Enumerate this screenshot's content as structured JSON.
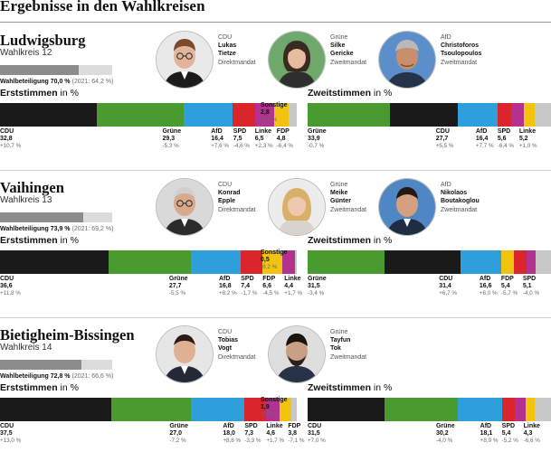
{
  "page_title": "Ergebnisse in den Wahlkreisen",
  "vote_titles": {
    "first": {
      "main": "Erststimmen",
      "unit": " in %"
    },
    "second": {
      "main": "Zweitstimmen",
      "unit": " in %"
    }
  },
  "colors": {
    "CDU": "#1a1a1a",
    "Grüne": "#4a9b2f",
    "AfD": "#2d9fdb",
    "SPD": "#d9252b",
    "Linke": "#b3318f",
    "FDP": "#f2c40f",
    "Sonstige": "#c8c8c8"
  },
  "districts": [
    {
      "name": "Ludwigsburg",
      "subtitle": "Wahlkreis 12",
      "turnout_label": "Wahlbeteiligung 70,0 %",
      "turnout_prev": "(2021: 64,2 %)",
      "turnout_value": 70.0,
      "candidates": [
        {
          "party": "CDU",
          "first": "Lukas",
          "last": "Tietze",
          "mandate": "Direktmandat",
          "photo": "portrait-1"
        },
        {
          "party": "Grüne",
          "first": "Silke",
          "last": "Gericke",
          "mandate": "Zweitmandat",
          "photo": "portrait-2"
        },
        {
          "party": "AfD",
          "first": "Christoforos",
          "last": "Tsoulopoulos",
          "mandate": "Zweitmandat",
          "photo": "portrait-3"
        }
      ],
      "first_votes": [
        {
          "party": "CDU",
          "value": 32.8,
          "value_label": "32,8",
          "change": "+10,7 %"
        },
        {
          "party": "Grüne",
          "value": 29.3,
          "value_label": "29,3",
          "change": "-5,3 %"
        },
        {
          "party": "AfD",
          "value": 16.4,
          "value_label": "16,4",
          "change": "+7,6 %"
        },
        {
          "party": "SPD",
          "value": 7.5,
          "value_label": "7,5",
          "change": "-4,6 %"
        },
        {
          "party": "Linke",
          "value": 6.5,
          "value_label": "6,5",
          "change": "+2,3 %"
        },
        {
          "party": "FDP",
          "value": 4.8,
          "value_label": "4,8",
          "change": "-6,4 %"
        },
        {
          "party": "Sonstige",
          "value": 2.8,
          "value_label": "2,8",
          "change": "-4,3 %"
        }
      ],
      "second_votes": [
        {
          "party": "Grüne",
          "value": 33.9,
          "value_label": "33,9",
          "change": "-0,7 %"
        },
        {
          "party": "CDU",
          "value": 27.7,
          "value_label": "27,7",
          "change": "+5,5 %"
        },
        {
          "party": "AfD",
          "value": 16.4,
          "value_label": "16,4",
          "change": "+7,7 %"
        },
        {
          "party": "SPD",
          "value": 5.6,
          "value_label": "5,6",
          "change": "-6,4 %"
        },
        {
          "party": "Linke",
          "value": 5.2,
          "value_label": "5,2",
          "change": "+1,0 %"
        },
        {
          "party": "FDP",
          "value": 4.5,
          "value_label": "",
          "change": ""
        },
        {
          "party": "Sonstige",
          "value": 6.7,
          "value_label": "",
          "change": ""
        }
      ]
    },
    {
      "name": "Vaihingen",
      "subtitle": "Wahlkreis 13",
      "turnout_label": "Wahlbeteiligung 73,9 %",
      "turnout_prev": "(2021: 69,2 %)",
      "turnout_value": 73.9,
      "candidates": [
        {
          "party": "CDU",
          "first": "Konrad",
          "last": "Epple",
          "mandate": "Direktmandat",
          "photo": "portrait-4"
        },
        {
          "party": "Grüne",
          "first": "Meike",
          "last": "Günter",
          "mandate": "Zweitmandat",
          "photo": "portrait-5"
        },
        {
          "party": "AfD",
          "first": "Nikolaos",
          "last": "Boutakoglou",
          "mandate": "Zweitmandat",
          "photo": "portrait-6"
        }
      ],
      "first_votes": [
        {
          "party": "CDU",
          "value": 36.6,
          "value_label": "36,6",
          "change": "+11,8 %"
        },
        {
          "party": "Grüne",
          "value": 27.7,
          "value_label": "27,7",
          "change": "-5,5 %"
        },
        {
          "party": "AfD",
          "value": 16.8,
          "value_label": "16,8",
          "change": "+8,2 %"
        },
        {
          "party": "SPD",
          "value": 7.4,
          "value_label": "7,4",
          "change": "-1,7 %"
        },
        {
          "party": "FDP",
          "value": 6.6,
          "value_label": "6,6",
          "change": "-4,5 %"
        },
        {
          "party": "Linke",
          "value": 4.4,
          "value_label": "4,4",
          "change": "+1,7 %"
        },
        {
          "party": "Sonstige",
          "value": 0.5,
          "value_label": "0,5",
          "change": "-8,2 %"
        }
      ],
      "second_votes": [
        {
          "party": "Grüne",
          "value": 31.5,
          "value_label": "31,5",
          "change": "-3,4 %"
        },
        {
          "party": "CDU",
          "value": 31.4,
          "value_label": "31,4",
          "change": "+6,7 %"
        },
        {
          "party": "AfD",
          "value": 16.6,
          "value_label": "16,6",
          "change": "+8,0 %"
        },
        {
          "party": "FDP",
          "value": 5.4,
          "value_label": "5,4",
          "change": "-5,7 %"
        },
        {
          "party": "SPD",
          "value": 5.1,
          "value_label": "5,1",
          "change": "-4,0 %"
        },
        {
          "party": "Linke",
          "value": 3.5,
          "value_label": "",
          "change": ""
        },
        {
          "party": "Sonstige",
          "value": 6.5,
          "value_label": "",
          "change": ""
        }
      ]
    },
    {
      "name": "Bietigheim-Bissingen",
      "subtitle": "Wahlkreis 14",
      "turnout_label": "Wahlbeteiligung 72,8 %",
      "turnout_prev": "(2021: 66,6 %)",
      "turnout_value": 72.8,
      "candidates": [
        {
          "party": "CDU",
          "first": "Tobias",
          "last": "Vogt",
          "mandate": "Direktmandat",
          "photo": "portrait-7"
        },
        {
          "party": "Grüne",
          "first": "Tayfun",
          "last": "Tok",
          "mandate": "Zweitmandat",
          "photo": "portrait-8"
        }
      ],
      "first_votes": [
        {
          "party": "CDU",
          "value": 37.5,
          "value_label": "37,5",
          "change": "+13,0 %"
        },
        {
          "party": "Grüne",
          "value": 27.0,
          "value_label": "27,0",
          "change": "-7,2 %"
        },
        {
          "party": "AfD",
          "value": 18.0,
          "value_label": "18,0",
          "change": "+8,8 %"
        },
        {
          "party": "SPD",
          "value": 7.3,
          "value_label": "7,3",
          "change": "-3,3 %"
        },
        {
          "party": "Linke",
          "value": 4.6,
          "value_label": "4,6",
          "change": "+1,7 %"
        },
        {
          "party": "FDP",
          "value": 3.8,
          "value_label": "3,8",
          "change": "-7,1 %"
        },
        {
          "party": "Sonstige",
          "value": 1.9,
          "value_label": "1,9",
          "change": "-5,9 %"
        }
      ],
      "second_votes": [
        {
          "party": "CDU",
          "value": 31.5,
          "value_label": "31,5",
          "change": "+7,0 %"
        },
        {
          "party": "Grüne",
          "value": 30.2,
          "value_label": "30,2",
          "change": "-4,0 %"
        },
        {
          "party": "AfD",
          "value": 18.1,
          "value_label": "18,1",
          "change": "+8,9 %"
        },
        {
          "party": "SPD",
          "value": 5.4,
          "value_label": "5,4",
          "change": "-5,2 %"
        },
        {
          "party": "Linke",
          "value": 4.3,
          "value_label": "4,3",
          "change": "-6,6 %"
        },
        {
          "party": "FDP",
          "value": 3.8,
          "value_label": "",
          "change": ""
        },
        {
          "party": "Sonstige",
          "value": 6.7,
          "value_label": "",
          "change": ""
        }
      ]
    }
  ]
}
